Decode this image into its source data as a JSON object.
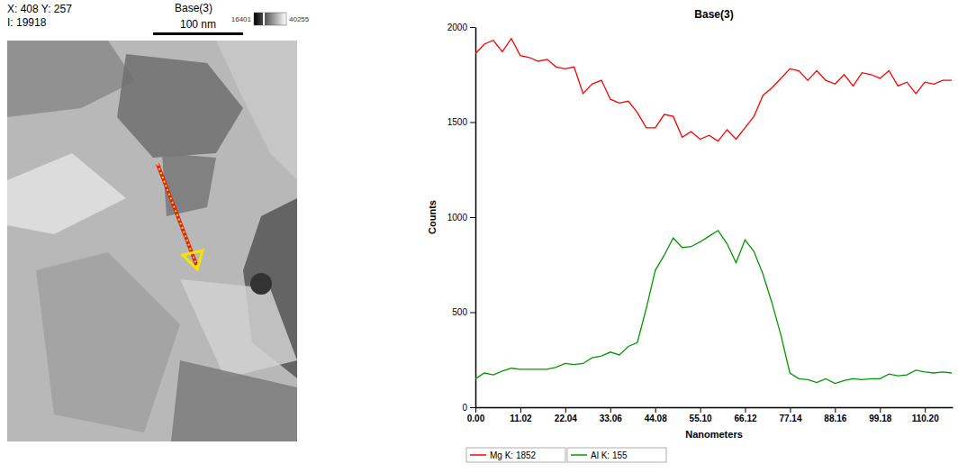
{
  "chart_data": {
    "type": "line",
    "title": "Base(3)",
    "x_label": "Nanometers",
    "y_label": "Counts",
    "x": [
      0,
      2.2,
      4.4,
      6.6,
      8.8,
      11.0,
      13.2,
      15.4,
      17.6,
      19.8,
      22.0,
      24.2,
      26.4,
      28.6,
      30.9,
      33.1,
      35.3,
      37.5,
      39.7,
      41.9,
      44.1,
      46.3,
      48.5,
      50.7,
      52.9,
      55.1,
      57.3,
      59.5,
      61.7,
      63.9,
      66.1,
      68.3,
      70.5,
      72.7,
      74.9,
      77.1,
      79.3,
      81.5,
      83.7,
      85.9,
      88.2,
      90.4,
      92.6,
      94.8,
      97.0,
      99.2,
      101.4,
      103.6,
      105.8,
      108.0,
      110.2,
      112.4,
      114.6,
      116.8
    ],
    "series": [
      {
        "name": "Mg K: 1852",
        "color": "#ff0000",
        "line_style": "solid",
        "values": [
          1860,
          1910,
          1930,
          1870,
          1940,
          1850,
          1840,
          1820,
          1830,
          1790,
          1780,
          1790,
          1650,
          1700,
          1720,
          1620,
          1600,
          1610,
          1550,
          1470,
          1470,
          1540,
          1530,
          1420,
          1450,
          1410,
          1430,
          1400,
          1460,
          1410,
          1470,
          1530,
          1640,
          1680,
          1730,
          1780,
          1770,
          1720,
          1770,
          1720,
          1700,
          1750,
          1690,
          1760,
          1750,
          1730,
          1770,
          1690,
          1710,
          1650,
          1710,
          1700,
          1720,
          1720
        ]
      },
      {
        "name": "Al K: 155",
        "color": "#009900",
        "line_style": "solid",
        "values": [
          150,
          180,
          170,
          190,
          205,
          200,
          200,
          200,
          200,
          210,
          230,
          225,
          230,
          260,
          270,
          290,
          275,
          320,
          340,
          520,
          720,
          800,
          890,
          840,
          845,
          870,
          900,
          930,
          860,
          760,
          880,
          820,
          700,
          550,
          380,
          180,
          150,
          145,
          130,
          150,
          125,
          140,
          150,
          145,
          150,
          150,
          175,
          165,
          170,
          195,
          185,
          180,
          185,
          180
        ]
      }
    ],
    "xlim": [
      0,
      117
    ],
    "xticks": [
      {
        "value": 0,
        "label": "0.00"
      },
      11.02,
      22.04,
      33.06,
      44.08,
      {
        "value": 55.1,
        "label": "55.10"
      },
      66.12,
      77.14,
      88.16,
      99.18,
      {
        "value": 110.2,
        "label": "110.20"
      }
    ],
    "ylim": [
      0,
      2000
    ],
    "yticks": [
      0,
      500,
      1000,
      1500,
      2000
    ],
    "grid": false,
    "legend": "bottom"
  },
  "image_panel": {
    "title": "Base(3)",
    "cursor": "X: 408 Y: 257",
    "intensity": "I: 19918",
    "scale_bar": "100 nm",
    "colorbar_range": [
      16401,
      40255
    ]
  }
}
